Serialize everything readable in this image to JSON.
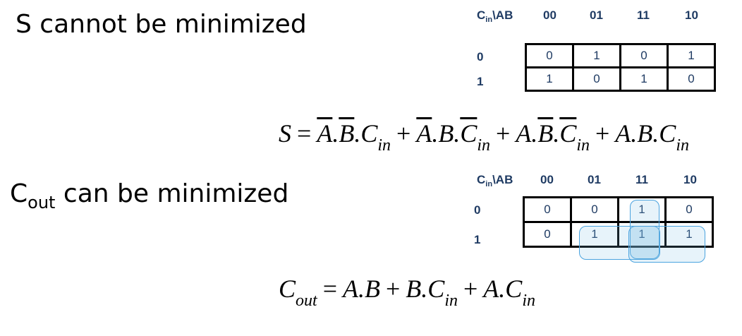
{
  "sum": {
    "heading": "S cannot be minimized",
    "corner_main": "C",
    "corner_sub": "in",
    "corner_tail": "\\AB",
    "columns": [
      "00",
      "01",
      "11",
      "10"
    ],
    "rows": [
      {
        "label": "0",
        "cells": [
          "0",
          "1",
          "0",
          "1"
        ]
      },
      {
        "label": "1",
        "cells": [
          "1",
          "0",
          "1",
          "0"
        ]
      }
    ],
    "formula": {
      "lhs": "S",
      "eq": "=",
      "t1a": "A",
      "t1b": ".",
      "t1c": "B",
      "t1d": ".C",
      "t1sub": "in",
      "p1": "+",
      "t2a": "A",
      "t2b": ".B.",
      "t2c": "C",
      "t2sub": "in",
      "p2": "+",
      "t3a": "A.",
      "t3b": "B",
      "t3c": ".",
      "t3d": "C",
      "t3sub": "in",
      "p3": "+",
      "t4a": "A.B.C",
      "t4sub": "in"
    }
  },
  "carry": {
    "heading_main": "C",
    "heading_sub": "out",
    "heading_tail": " can be minimized",
    "corner_main": "C",
    "corner_sub": "in",
    "corner_tail": "\\AB",
    "columns": [
      "00",
      "01",
      "11",
      "10"
    ],
    "rows": [
      {
        "label": "0",
        "cells": [
          "0",
          "0",
          "1",
          "0"
        ]
      },
      {
        "label": "1",
        "cells": [
          "0",
          "1",
          "1",
          "1"
        ]
      }
    ],
    "formula": {
      "lhs": "C",
      "lhs_sub": "out",
      "eq": "=",
      "t1": "A.B",
      "p1": "+",
      "t2": "B.C",
      "t2sub": "in",
      "p2": "+",
      "t3": "A.C",
      "t3sub": "in"
    }
  },
  "colors": {
    "label_text": "#1f3b63",
    "group_border": "#4aa3df"
  }
}
